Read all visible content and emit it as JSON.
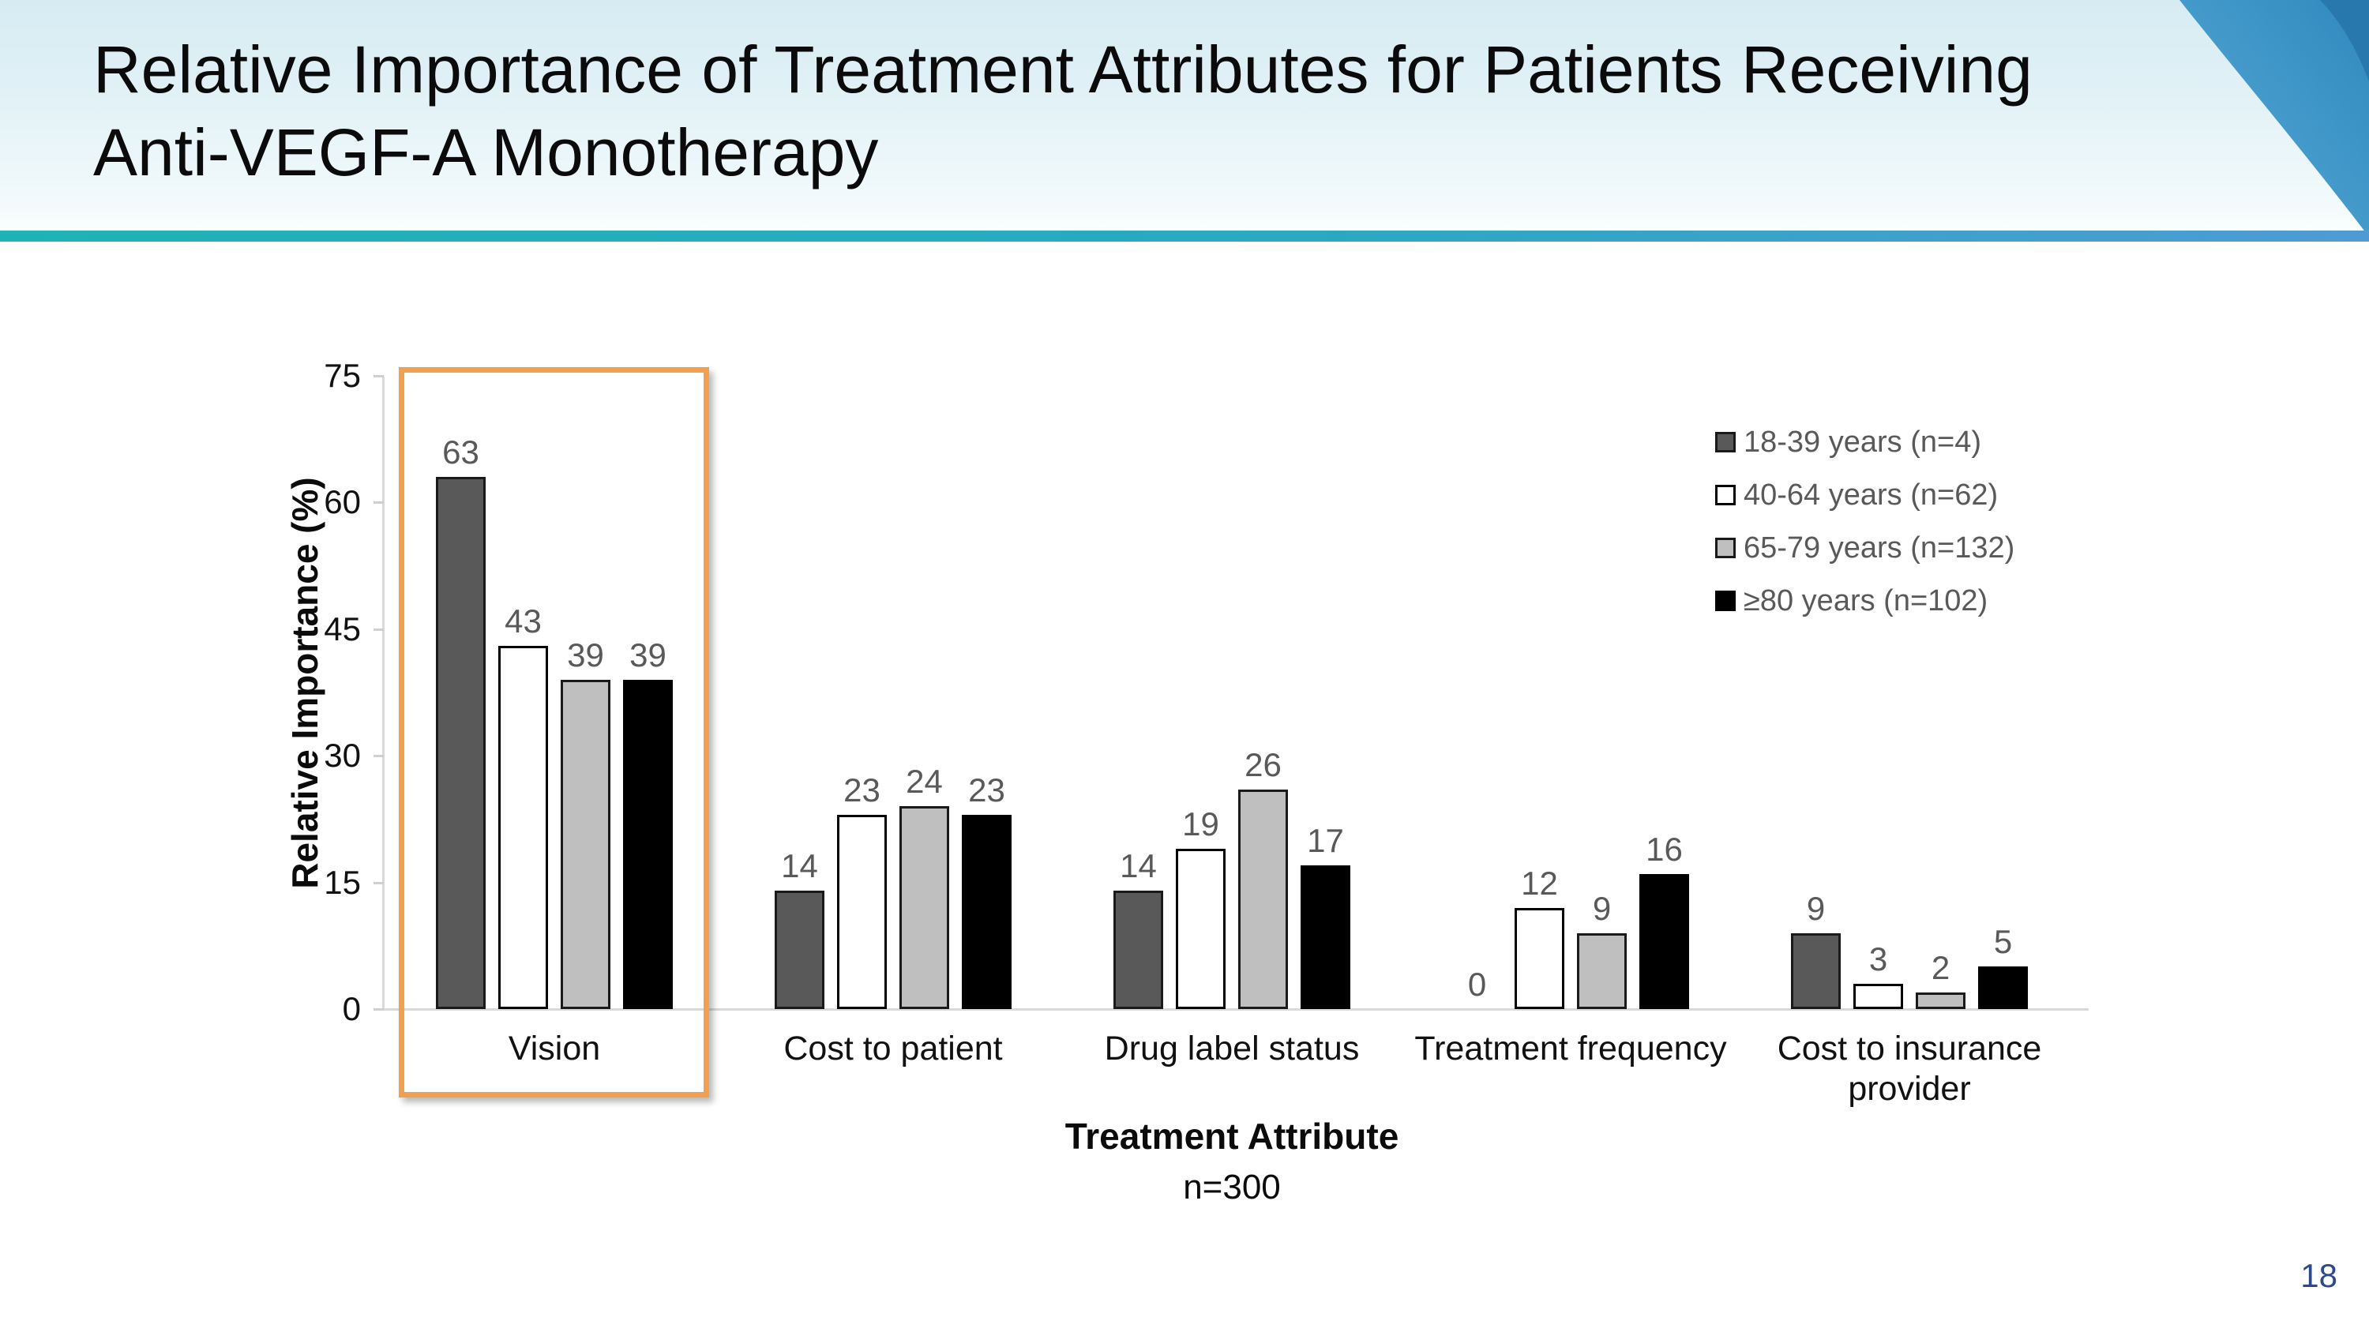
{
  "slide": {
    "title_line1": "Relative Importance of Treatment Attributes for Patients Receiving",
    "title_line2": "Anti-VEGF-A Monotherapy",
    "page_number": "18"
  },
  "chart_data": {
    "type": "bar",
    "title": "",
    "xlabel": "Treatment Attribute",
    "xlabel_note": "n=300",
    "ylabel": "Relative Importance (%)",
    "ylim": [
      0,
      75
    ],
    "yticks": [
      0,
      15,
      30,
      45,
      60,
      75
    ],
    "grid": false,
    "legend_position": "top-right",
    "categories": [
      "Vision",
      "Cost to patient",
      "Drug label status",
      "Treatment frequency",
      "Cost to insurance provider"
    ],
    "series": [
      {
        "name": "18-39 years (n=4)",
        "fill": "#595959",
        "border": "#1a1a1a",
        "values": [
          63,
          14,
          14,
          0,
          9
        ]
      },
      {
        "name": "40-64 years (n=62)",
        "fill": "#ffffff",
        "border": "#000000",
        "values": [
          43,
          23,
          19,
          12,
          3
        ]
      },
      {
        "name": "65-79 years (n=132)",
        "fill": "#bfbfbf",
        "border": "#1a1a1a",
        "values": [
          39,
          24,
          26,
          9,
          2
        ]
      },
      {
        "name": "≥80 years (n=102)",
        "fill": "#000000",
        "border": "#000000",
        "values": [
          39,
          23,
          17,
          16,
          5
        ]
      }
    ],
    "highlight": {
      "category": "Vision",
      "color": "#f0a04f"
    }
  },
  "colors": {
    "accent_bar_left": "#1fb2b5",
    "accent_bar_right": "#4e9bd3",
    "corner_blue": "#3a91c4",
    "corner_blue_dark": "#2878ae",
    "value_label": "#595959",
    "axis_line": "#d9d9d9",
    "page_number": "#2b4a8b"
  }
}
